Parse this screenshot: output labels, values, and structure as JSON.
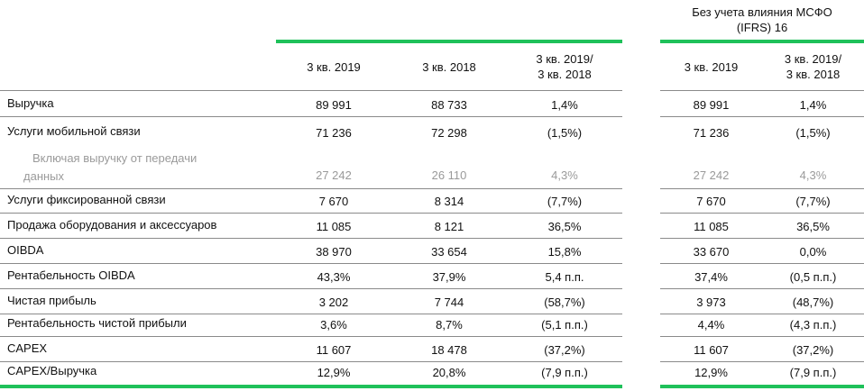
{
  "header": {
    "ifrs_title_line1": "Без учета влияния МСФО",
    "ifrs_title_line2": "(IFRS) 16",
    "col_q3_2019": "3 кв. 2019",
    "col_q3_2018": "3 кв. 2018",
    "col_change_line1": "3 кв. 2019/",
    "col_change_line2": "3 кв. 2018",
    "ifrs_col_q3_2019": "3 кв. 2019",
    "ifrs_col_change_line1": "3 кв. 2019/",
    "ifrs_col_change_line2": "3 кв. 2018"
  },
  "rows": [
    {
      "label": "Выручка",
      "v2019": "89 991",
      "v2018": "88 733",
      "change": "1,4%",
      "ifrs_v2019": "89 991",
      "ifrs_change": "1,4%"
    },
    {
      "label": "Услуги мобильной связи",
      "v2019": "71 236",
      "v2018": "72 298",
      "change": "(1,5%)",
      "ifrs_v2019": "71 236",
      "ifrs_change": "(1,5%)"
    },
    {
      "label_line1": "Включая выручку от передачи",
      "label_line2": "данных",
      "v2019": "27 242",
      "v2018": "26 110",
      "change": "4,3%",
      "ifrs_v2019": "27 242",
      "ifrs_change": "4,3%"
    },
    {
      "label": "Услуги фиксированной связи",
      "v2019": "7 670",
      "v2018": "8 314",
      "change": "(7,7%)",
      "ifrs_v2019": "7 670",
      "ifrs_change": "(7,7%)"
    },
    {
      "label": "Продажа оборудования и аксессуаров",
      "v2019": "11 085",
      "v2018": "8 121",
      "change": "36,5%",
      "ifrs_v2019": "11 085",
      "ifrs_change": "36,5%"
    },
    {
      "label": "OIBDA",
      "v2019": "38 970",
      "v2018": "33 654",
      "change": "15,8%",
      "ifrs_v2019": "33 670",
      "ifrs_change": "0,0%"
    },
    {
      "label": "Рентабельность OIBDA",
      "v2019": "43,3%",
      "v2018": "37,9%",
      "change": "5,4 п.п.",
      "ifrs_v2019": "37,4%",
      "ifrs_change": "(0,5 п.п.)"
    },
    {
      "label": "Чистая прибыль",
      "v2019": "3 202",
      "v2018": "7 744",
      "change": "(58,7%)",
      "ifrs_v2019": "3 973",
      "ifrs_change": "(48,7%)"
    },
    {
      "label": "Рентабельность чистой прибыли",
      "v2019": "3,6%",
      "v2018": "8,7%",
      "change": "(5,1 п.п.)",
      "ifrs_v2019": "4,4%",
      "ifrs_change": "(4,3 п.п.)"
    },
    {
      "label": "CAPEX",
      "v2019": "11 607",
      "v2018": "18 478",
      "change": "(37,2%)",
      "ifrs_v2019": "11 607",
      "ifrs_change": "(37,2%)"
    },
    {
      "label": "CAPEX/Выручка",
      "v2019": "12,9%",
      "v2018": "20,8%",
      "change": "(7,9 п.п.)",
      "ifrs_v2019": "12,9%",
      "ifrs_change": "(7,9 п.п.)"
    }
  ],
  "colors": {
    "accent": "#1fc15a",
    "muted_text": "#9a9a9a"
  }
}
